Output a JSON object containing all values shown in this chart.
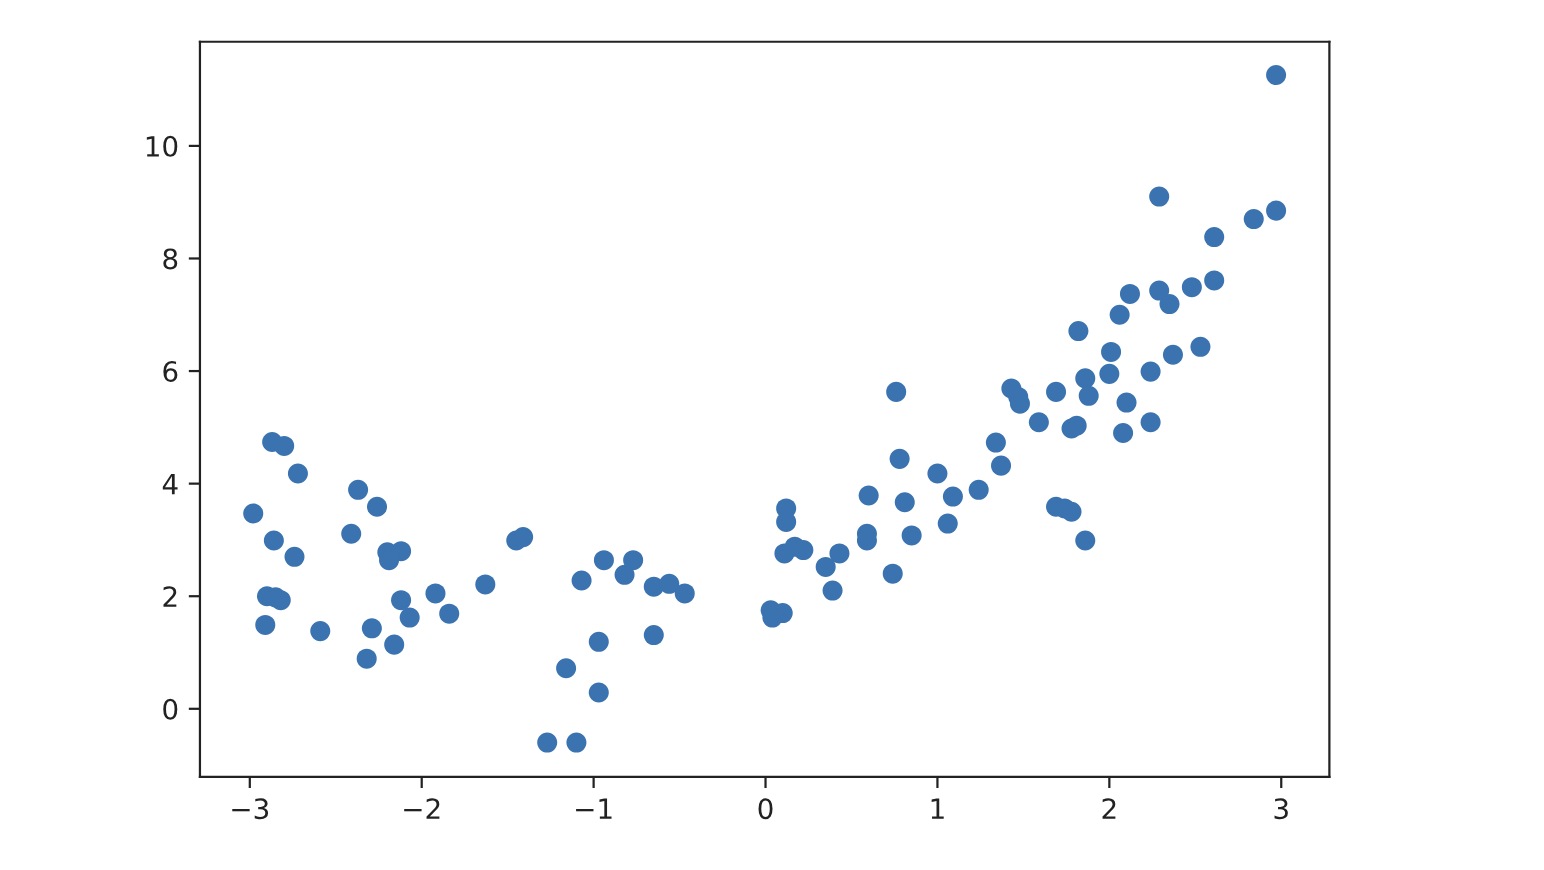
{
  "chart_data": {
    "type": "scatter",
    "color": "#3a73b0",
    "marker": "circle",
    "x": [
      -2.98,
      -2.87,
      -2.8,
      -2.72,
      -2.86,
      -2.74,
      -2.9,
      -2.85,
      -2.82,
      -2.91,
      -2.59,
      -2.41,
      -2.37,
      -2.26,
      -2.29,
      -2.32,
      -2.2,
      -2.12,
      -2.19,
      -2.12,
      -2.07,
      -2.16,
      -1.92,
      -1.84,
      -1.63,
      -1.45,
      -1.41,
      -1.07,
      -1.16,
      -1.27,
      -1.1,
      -0.94,
      -0.97,
      -0.97,
      -0.82,
      -0.77,
      -0.65,
      -0.56,
      -0.47,
      -0.65,
      0.03,
      0.1,
      0.04,
      0.12,
      0.12,
      0.11,
      0.17,
      0.22,
      0.35,
      0.43,
      0.39,
      0.6,
      0.59,
      0.59,
      0.74,
      0.76,
      0.78,
      0.81,
      0.85,
      1.0,
      1.06,
      1.09,
      1.24,
      1.34,
      1.37,
      1.43,
      1.47,
      1.48,
      1.59,
      1.69,
      1.69,
      1.74,
      1.78,
      1.78,
      1.81,
      1.82,
      1.86,
      1.88,
      1.86,
      2.01,
      2.0,
      2.06,
      2.12,
      2.1,
      2.08,
      2.24,
      2.24,
      2.29,
      2.29,
      2.35,
      2.37,
      2.48,
      2.53,
      2.61,
      2.61,
      2.84,
      2.97,
      2.97
    ],
    "values": [
      3.47,
      4.74,
      4.67,
      4.18,
      2.99,
      2.7,
      2.0,
      1.98,
      1.93,
      1.49,
      1.38,
      3.11,
      3.89,
      3.59,
      1.43,
      0.89,
      2.78,
      2.8,
      2.64,
      1.93,
      1.62,
      1.14,
      2.05,
      1.69,
      2.21,
      2.99,
      3.05,
      2.28,
      0.72,
      -0.6,
      -0.6,
      2.64,
      1.19,
      0.29,
      2.38,
      2.64,
      2.17,
      2.22,
      2.05,
      1.31,
      1.75,
      1.7,
      1.62,
      3.56,
      3.32,
      2.76,
      2.88,
      2.82,
      2.52,
      2.76,
      2.1,
      3.79,
      3.11,
      2.99,
      2.4,
      5.63,
      4.44,
      3.67,
      3.08,
      4.18,
      3.29,
      3.77,
      3.89,
      4.73,
      4.32,
      5.69,
      5.54,
      5.42,
      5.09,
      5.63,
      3.59,
      3.56,
      3.5,
      4.98,
      5.03,
      6.71,
      5.87,
      5.56,
      2.99,
      6.34,
      5.95,
      7.0,
      7.37,
      5.44,
      4.9,
      5.99,
      5.09,
      9.1,
      7.43,
      7.19,
      6.29,
      7.49,
      6.43,
      7.61,
      8.38,
      8.7,
      8.85,
      11.26
    ],
    "xlim": [
      -3.29,
      3.28
    ],
    "ylim": [
      -1.21,
      11.85
    ],
    "xticks": [
      {
        "value": -3,
        "label": "−3"
      },
      {
        "value": -2,
        "label": "−2"
      },
      {
        "value": -1,
        "label": "−1"
      },
      0,
      1,
      2,
      3
    ],
    "yticks": [
      0,
      2,
      4,
      6,
      8,
      10
    ]
  }
}
